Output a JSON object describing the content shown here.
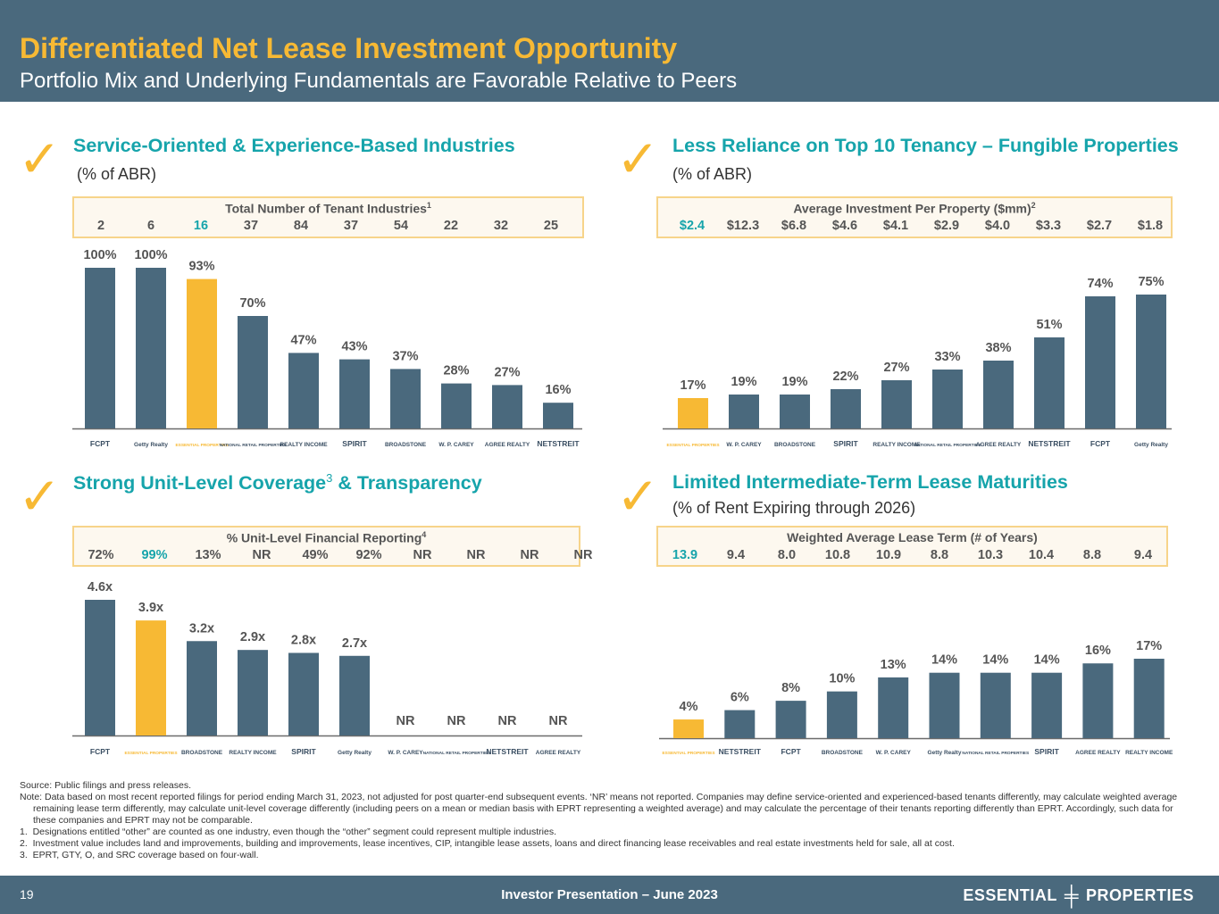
{
  "header": {
    "title": "Differentiated Net Lease Investment Opportunity",
    "subtitle": "Portfolio Mix and Underlying Fundamentals are Favorable Relative to Peers"
  },
  "colors": {
    "bar": "#4a697d",
    "highlight": "#f7b934",
    "accent": "#16a4ab",
    "axis": "#555555"
  },
  "sections": {
    "industries": {
      "title": "Service-Oriented & Experience-Based Industries",
      "subtitle": "(% of ABR)",
      "table_title": "Total Number of Tenant Industries",
      "table_title_sup": "1",
      "table_values": [
        "2",
        "6",
        "16",
        "37",
        "84",
        "37",
        "54",
        "22",
        "32",
        "25"
      ]
    },
    "tenancy": {
      "title": "Less Reliance on Top 10 Tenancy – Fungible Properties",
      "subtitle": "(% of ABR)",
      "table_title": "Average Investment Per Property ($mm)",
      "table_title_sup": "2",
      "table_values": [
        "$2.4",
        "$12.3",
        "$6.8",
        "$4.6",
        "$4.1",
        "$2.9",
        "$4.0",
        "$3.3",
        "$2.7",
        "$1.8"
      ]
    },
    "coverage": {
      "title_a": "Strong Unit-Level Coverage",
      "title_sup": "3",
      "title_b": " & Transparency",
      "table_title": "% Unit-Level Financial Reporting",
      "table_title_sup": "4",
      "table_values": [
        "72%",
        "99%",
        "13%",
        "NR",
        "49%",
        "92%",
        "NR",
        "NR",
        "NR",
        "NR"
      ]
    },
    "maturities": {
      "title": "Limited Intermediate-Term Lease Maturities",
      "subtitle": "(% of Rent Expiring through 2026)",
      "table_title": "Weighted Average Lease Term (# of Years)",
      "table_values": [
        "13.9",
        "9.4",
        "8.0",
        "10.8",
        "10.9",
        "8.8",
        "10.3",
        "10.4",
        "8.8",
        "9.4"
      ]
    }
  },
  "chart_data": [
    {
      "type": "bar",
      "title": "Service-Oriented & Experience-Based Industries (% of ABR)",
      "categories": [
        "FCPT",
        "Getty Realty",
        "Essential Properties",
        "National Retail Properties",
        "Realty Income",
        "Spirit",
        "Broadstone",
        "W. P. Carey",
        "Agree Realty",
        "Netstreit"
      ],
      "values": [
        100,
        100,
        93,
        70,
        47,
        43,
        37,
        28,
        27,
        16
      ],
      "labels": [
        "100%",
        "100%",
        "93%",
        "70%",
        "47%",
        "43%",
        "37%",
        "28%",
        "27%",
        "16%"
      ],
      "highlight_index": 2,
      "ylim": [
        0,
        100
      ]
    },
    {
      "type": "bar",
      "title": "Less Reliance on Top 10 Tenancy – Fungible Properties (% of ABR)",
      "categories": [
        "Essential Properties",
        "W. P. Carey",
        "Broadstone",
        "Spirit",
        "Realty Income",
        "National Retail Properties",
        "Agree Realty",
        "Netstreit",
        "FCPT",
        "Getty Realty"
      ],
      "values": [
        17,
        19,
        19,
        22,
        27,
        33,
        38,
        51,
        74,
        75
      ],
      "labels": [
        "17%",
        "19%",
        "19%",
        "22%",
        "27%",
        "33%",
        "38%",
        "51%",
        "74%",
        "75%"
      ],
      "highlight_index": 0,
      "ylim": [
        0,
        100
      ]
    },
    {
      "type": "bar",
      "title": "Strong Unit-Level Coverage & Transparency",
      "categories": [
        "FCPT",
        "Essential Properties",
        "Broadstone",
        "Realty Income",
        "Spirit",
        "Getty Realty",
        "W. P. Carey",
        "National Retail Properties",
        "Netstreit",
        "Agree Realty"
      ],
      "values": [
        4.6,
        3.9,
        3.2,
        2.9,
        2.8,
        2.7,
        null,
        null,
        null,
        null
      ],
      "labels": [
        "4.6x",
        "3.9x",
        "3.2x",
        "2.9x",
        "2.8x",
        "2.7x",
        "NR",
        "NR",
        "NR",
        "NR"
      ],
      "highlight_index": 1,
      "ylim": [
        0,
        4.6
      ]
    },
    {
      "type": "bar",
      "title": "Limited Intermediate-Term Lease Maturities (% of Rent Expiring through 2026)",
      "categories": [
        "Essential Properties",
        "Netstreit",
        "FCPT",
        "Broadstone",
        "W. P. Carey",
        "Getty Realty",
        "National Retail Properties",
        "Spirit",
        "Agree Realty",
        "Realty Income"
      ],
      "values": [
        4,
        6,
        8,
        10,
        13,
        14,
        14,
        14,
        16,
        17
      ],
      "labels": [
        "4%",
        "6%",
        "8%",
        "10%",
        "13%",
        "14%",
        "14%",
        "14%",
        "16%",
        "17%"
      ],
      "highlight_index": 0,
      "ylim": [
        0,
        17
      ]
    }
  ],
  "logos": {
    "FCPT": "FCPT",
    "Getty Realty": "Getty Realty",
    "Essential Properties": "ESSENTIAL PROPERTIES",
    "National Retail Properties": "NATIONAL RETAIL PROPERTIES",
    "Realty Income": "REALTY INCOME",
    "Spirit": "SPIRIT",
    "Broadstone": "BROADSTONE",
    "W. P. Carey": "W. P. CAREY",
    "Agree Realty": "AGREE REALTY",
    "Netstreit": "NETSTREIT"
  },
  "notes": {
    "source": "Source: Public filings and press releases.",
    "note": "Note: Data based on most recent reported filings for period ending March 31, 2023, not adjusted for post quarter-end subsequent events. ‘NR’ means not reported. Companies may define service-oriented and experienced-based tenants differently, may calculate weighted average remaining lease term differently, may calculate unit-level coverage differently (including peers on a mean or median basis with EPRT representing a weighted average) and may calculate the percentage of their tenants reporting differently than EPRT. Accordingly, such data for these companies and EPRT may not be comparable.",
    "items": [
      "1.  Designations entitled “other” are counted as one industry, even though the “other” segment could represent multiple industries.",
      "2.  Investment value includes land and improvements, building and improvements, lease incentives, CIP, intangible lease assets, loans and direct financing lease receivables and real estate investments held for sale, all at cost.",
      "3.  EPRT, GTY, O, and SRC coverage based on four-wall."
    ]
  },
  "footer": {
    "page": "19",
    "center": "Investor Presentation – June 2023",
    "brand_left": "ESSENTIAL",
    "brand_right": "PROPERTIES"
  }
}
